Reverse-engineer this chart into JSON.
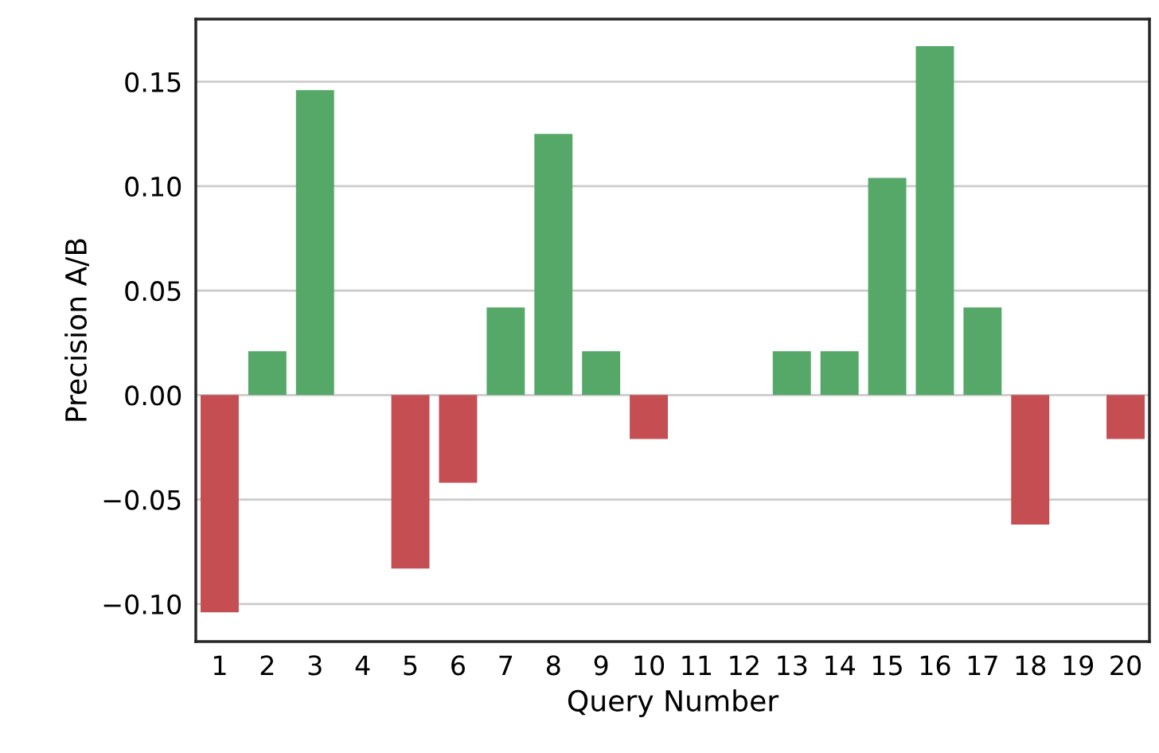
{
  "chart_data": {
    "type": "bar",
    "xlabel": "Query Number",
    "ylabel": "Precision A/B",
    "categories": [
      "1",
      "2",
      "3",
      "4",
      "5",
      "6",
      "7",
      "8",
      "9",
      "10",
      "11",
      "12",
      "13",
      "14",
      "15",
      "16",
      "17",
      "18",
      "19",
      "20"
    ],
    "values": [
      -0.104,
      0.021,
      0.146,
      0,
      -0.083,
      -0.042,
      0.042,
      0.125,
      0.021,
      -0.021,
      0,
      0,
      0.021,
      0.021,
      0.104,
      0.167,
      0.042,
      -0.062,
      0,
      -0.021
    ],
    "colors": [
      "#c44e52",
      "#55a868",
      "#55a868",
      "#55a868",
      "#c44e52",
      "#c44e52",
      "#55a868",
      "#55a868",
      "#55a868",
      "#c44e52",
      "#55a868",
      "#55a868",
      "#55a868",
      "#55a868",
      "#55a868",
      "#55a868",
      "#55a868",
      "#c44e52",
      "#55a868",
      "#c44e52"
    ],
    "ylim": [
      -0.118,
      0.18
    ],
    "yticks": [
      {
        "value": -0.1,
        "label": "−0.10"
      },
      {
        "value": -0.05,
        "label": "−0.05"
      },
      {
        "value": 0,
        "label": "0.00"
      },
      {
        "value": 0.05,
        "label": "0.05"
      },
      {
        "value": 0.1,
        "label": "0.10"
      },
      {
        "value": 0.15,
        "label": "0.15"
      }
    ],
    "grid": "y"
  }
}
